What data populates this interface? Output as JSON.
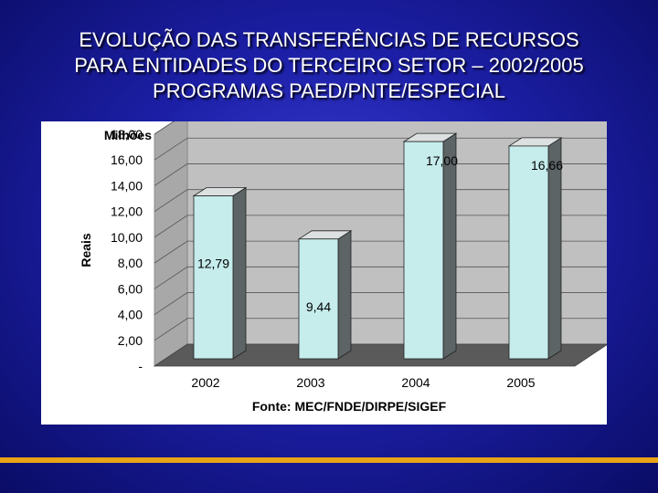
{
  "title_lines": [
    "EVOLUÇÃO DAS TRANSFERÊNCIAS DE RECURSOS",
    "PARA ENTIDADES DO TERCEIRO SETOR – 2002/2005",
    "PROGRAMAS PAED/PNTE/ESPECIAL"
  ],
  "chart_data": {
    "type": "bar",
    "categories": [
      "2002",
      "2003",
      "2004",
      "2005"
    ],
    "values": [
      12.79,
      9.44,
      17.0,
      16.66
    ],
    "data_labels": [
      "12,79",
      "9,44",
      "17,00",
      "16,66"
    ],
    "ylabel": "Reais",
    "unit_label": "Milhões",
    "ylim": [
      0,
      18
    ],
    "y_ticks": [
      0,
      2,
      4,
      6,
      8,
      10,
      12,
      14,
      16,
      18
    ],
    "y_tick_labels": [
      "-",
      "2,00",
      "4,00",
      "6,00",
      "8,00",
      "10,00",
      "12,00",
      "14,00",
      "16,00",
      "18,00"
    ],
    "source": "Fonte: MEC/FNDE/DIRPE/SIGEF",
    "grid": true,
    "style": "3d",
    "colors": {
      "bar_front": "#c6ecec",
      "bar_side": "#5c6466",
      "bar_top": "#dde0e0",
      "wall": "#c0c0c0",
      "floor": "#5a5a5a"
    }
  }
}
